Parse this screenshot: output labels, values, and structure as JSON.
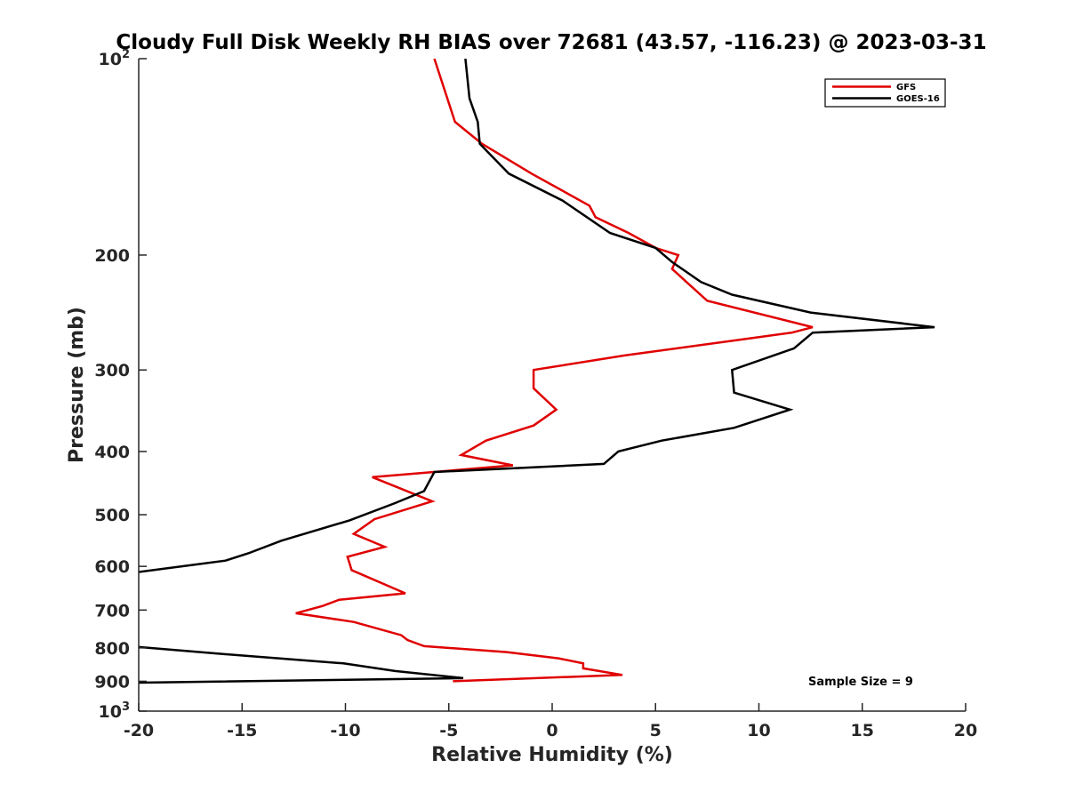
{
  "chart_data": {
    "type": "line",
    "title": "Cloudy Full Disk Weekly RH BIAS over 72681 (43.57, -116.23) @ 2023-03-31",
    "xlabel": "Relative Humidity (%)",
    "ylabel": "Pressure (mb)",
    "xlim": [
      -20,
      20
    ],
    "ylim": [
      100,
      1000
    ],
    "y_scale": "log",
    "y_reversed": true,
    "x_ticks": [
      -20,
      -15,
      -10,
      -5,
      0,
      5,
      10,
      15,
      20
    ],
    "x_tick_labels": [
      "-20",
      "-15",
      "-10",
      "-5",
      "0",
      "5",
      "10",
      "15",
      "20"
    ],
    "y_ticks": [
      200,
      300,
      400,
      500,
      600,
      700,
      800,
      900
    ],
    "y_tick_labels": [
      "200",
      "300",
      "400",
      "500",
      "600",
      "700",
      "800",
      "900"
    ],
    "y_decade_labels": [
      {
        "value": 100,
        "base": "10",
        "exp": "2"
      },
      {
        "value": 1000,
        "base": "10",
        "exp": "3"
      }
    ],
    "grid": false,
    "legend_position": "top-right",
    "annotation": "Sample Size = 9",
    "series": [
      {
        "name": "GFS",
        "color": "#e00000",
        "points": [
          [
            -5.7,
            100
          ],
          [
            -4.7,
            125
          ],
          [
            -3.4,
            135
          ],
          [
            -1.0,
            150
          ],
          [
            1.8,
            168
          ],
          [
            2.1,
            175
          ],
          [
            3.7,
            185
          ],
          [
            5.0,
            195
          ],
          [
            6.1,
            200
          ],
          [
            5.8,
            210
          ],
          [
            6.5,
            220
          ],
          [
            7.5,
            235
          ],
          [
            12.6,
            258
          ],
          [
            11.6,
            263
          ],
          [
            3.5,
            285
          ],
          [
            -0.9,
            300
          ],
          [
            -0.9,
            320
          ],
          [
            0.2,
            345
          ],
          [
            -0.9,
            365
          ],
          [
            -3.2,
            385
          ],
          [
            -4.4,
            405
          ],
          [
            -1.9,
            420
          ],
          [
            -8.7,
            438
          ],
          [
            -5.8,
            477
          ],
          [
            -8.6,
            508
          ],
          [
            -9.6,
            535
          ],
          [
            -8.1,
            560
          ],
          [
            -9.9,
            580
          ],
          [
            -9.7,
            608
          ],
          [
            -7.1,
            660
          ],
          [
            -10.3,
            675
          ],
          [
            -11.1,
            690
          ],
          [
            -12.4,
            708
          ],
          [
            -9.6,
            730
          ],
          [
            -7.3,
            765
          ],
          [
            -7.0,
            778
          ],
          [
            -6.2,
            795
          ],
          [
            -2.2,
            812
          ],
          [
            0.3,
            830
          ],
          [
            1.5,
            845
          ],
          [
            1.5,
            860
          ],
          [
            3.4,
            880
          ],
          [
            -4.8,
            900
          ]
        ]
      },
      {
        "name": "GOES-16",
        "color": "#000000",
        "points": [
          [
            -4.2,
            100
          ],
          [
            -4.0,
            115
          ],
          [
            -3.6,
            125
          ],
          [
            -3.5,
            135
          ],
          [
            -2.1,
            150
          ],
          [
            0.5,
            165
          ],
          [
            2.8,
            185
          ],
          [
            5.0,
            195
          ],
          [
            5.8,
            205
          ],
          [
            7.2,
            220
          ],
          [
            8.7,
            230
          ],
          [
            12.5,
            245
          ],
          [
            18.5,
            258
          ],
          [
            12.6,
            263
          ],
          [
            11.7,
            278
          ],
          [
            8.7,
            300
          ],
          [
            8.8,
            325
          ],
          [
            11.5,
            345
          ],
          [
            8.8,
            368
          ],
          [
            5.3,
            385
          ],
          [
            3.2,
            400
          ],
          [
            2.5,
            418
          ],
          [
            -5.7,
            430
          ],
          [
            -6.2,
            460
          ],
          [
            -7.6,
            480
          ],
          [
            -9.8,
            510
          ],
          [
            -13.1,
            548
          ],
          [
            -14.7,
            573
          ],
          [
            -15.8,
            588
          ],
          [
            -20.5,
            615
          ],
          [
            -20.5,
            795
          ],
          [
            -15.8,
            818
          ],
          [
            -10.1,
            845
          ],
          [
            -7.6,
            868
          ],
          [
            -4.3,
            890
          ],
          [
            -20.5,
            905
          ]
        ]
      }
    ]
  }
}
